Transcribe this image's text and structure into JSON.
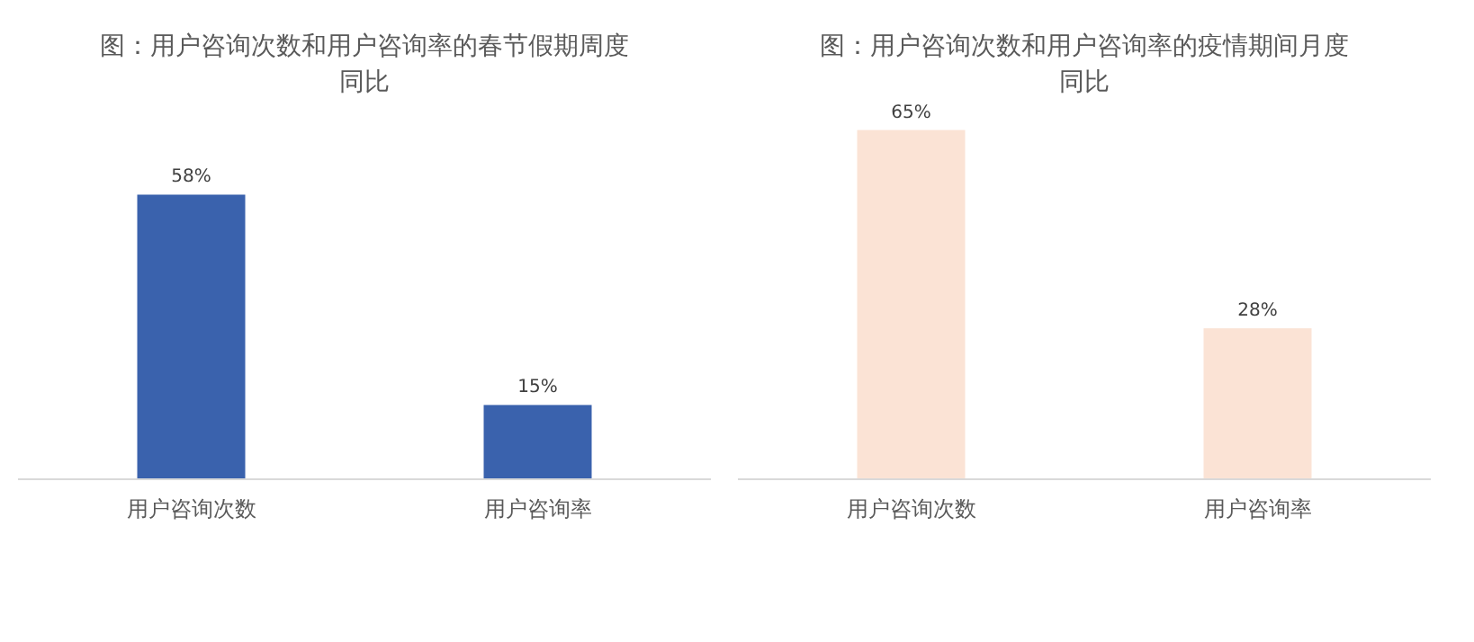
{
  "chart_data": [
    {
      "type": "bar",
      "title": "图：用户咨询次数和用户咨询率的春节假期周度同比",
      "categories": [
        "用户咨询次数",
        "用户咨询率"
      ],
      "series": [
        {
          "color": "#3a62ad",
          "values": [
            58,
            15
          ],
          "value_labels": [
            "58%",
            "15%"
          ]
        }
      ]
    },
    {
      "type": "bar",
      "title": "图：用户咨询次数和用户咨询率的疫情期间月度同比",
      "categories": [
        "用户咨询次数",
        "用户咨询率"
      ],
      "series": [
        {
          "color": "#fbe3d5",
          "values": [
            65,
            28
          ],
          "value_labels": [
            "65%",
            "28%"
          ]
        }
      ]
    }
  ]
}
